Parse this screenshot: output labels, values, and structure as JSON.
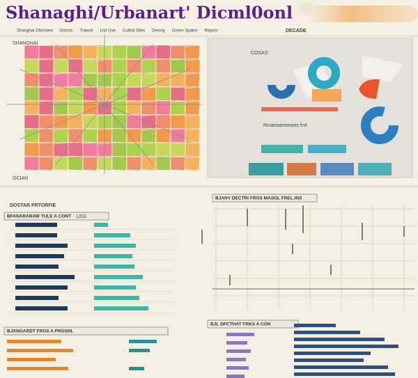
{
  "header": {
    "title": "Shanaghi/Urbanart' Dicml0onl",
    "nav": [
      "Shanghai Obnnane",
      "Dstrcts",
      "Trawsit",
      "Lnd Use",
      "Cultral Sites",
      "Densty",
      "Grenn Spaice",
      "Repors"
    ],
    "badge": "DECADE"
  },
  "map": {
    "label": "SHANGHAI",
    "footer": "OCIAN"
  },
  "summary": {
    "label": "COSAS",
    "caption": "Rmansamonaes frst"
  },
  "bars_main": {
    "heading": "DOSTAR PRTORFIE",
    "title": "BFANARANAW TULE A CONT",
    "tag": "LEG",
    "series": [
      {
        "color": "#1e3a5a",
        "values": [
          60,
          60,
          75,
          70,
          62,
          85,
          75,
          62,
          75
        ]
      },
      {
        "color": "#3fb5a8",
        "values": [
          20,
          52,
          60,
          55,
          58,
          70,
          60,
          65,
          78
        ]
      }
    ]
  },
  "trend": {
    "title": "BJANY DECTRI FROS   MASOL FREL.INS"
  },
  "bars_left": {
    "title": "BJANGARDT FROS A PROSHL",
    "series": [
      {
        "color": "#e08a2e",
        "values": [
          78,
          95,
          70,
          88
        ]
      },
      {
        "color": "#2a8f9a",
        "values": [
          40,
          30,
          0,
          22
        ]
      }
    ]
  },
  "bars_right": {
    "title": "BJL DPCTHAT FRKS A CON",
    "series": [
      {
        "color": "#8a78b8",
        "values": [
          40,
          30,
          35,
          28,
          32,
          26
        ]
      },
      {
        "color": "#26508a",
        "values": [
          60,
          95,
          130,
          150,
          110,
          100,
          135,
          145
        ]
      }
    ]
  }
}
